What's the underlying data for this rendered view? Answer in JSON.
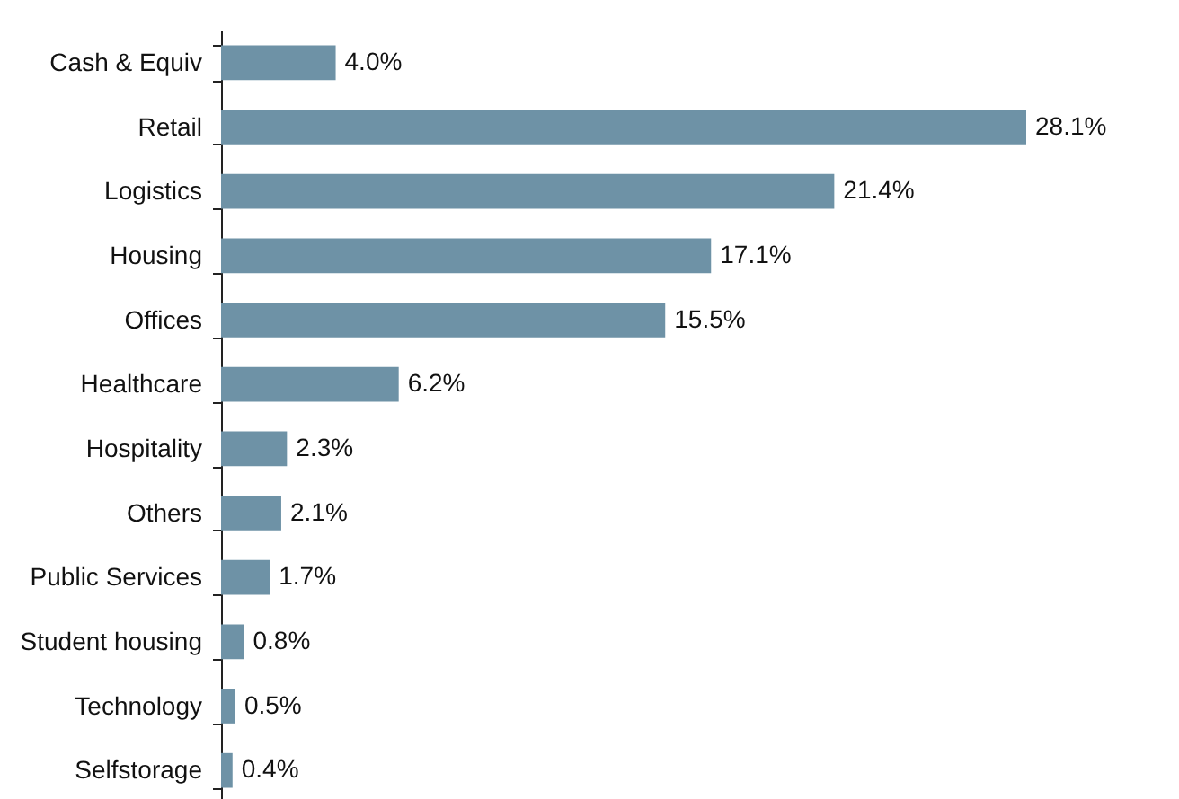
{
  "chart_data": {
    "type": "bar",
    "orientation": "horizontal",
    "categories": [
      "Cash & Equiv",
      "Retail",
      "Logistics",
      "Housing",
      "Offices",
      "Healthcare",
      "Hospitality",
      "Others",
      "Public Services",
      "Student housing",
      "Technology",
      "Selfstorage"
    ],
    "values": [
      4.0,
      28.1,
      21.4,
      17.1,
      15.5,
      6.2,
      2.3,
      2.1,
      1.7,
      0.8,
      0.5,
      0.4
    ],
    "value_labels": [
      "4.0%",
      "28.1%",
      "21.4%",
      "17.1%",
      "15.5%",
      "6.2%",
      "2.3%",
      "2.1%",
      "1.7%",
      "0.8%",
      "0.5%",
      "0.4%"
    ],
    "color": "#6e92a6"
  }
}
